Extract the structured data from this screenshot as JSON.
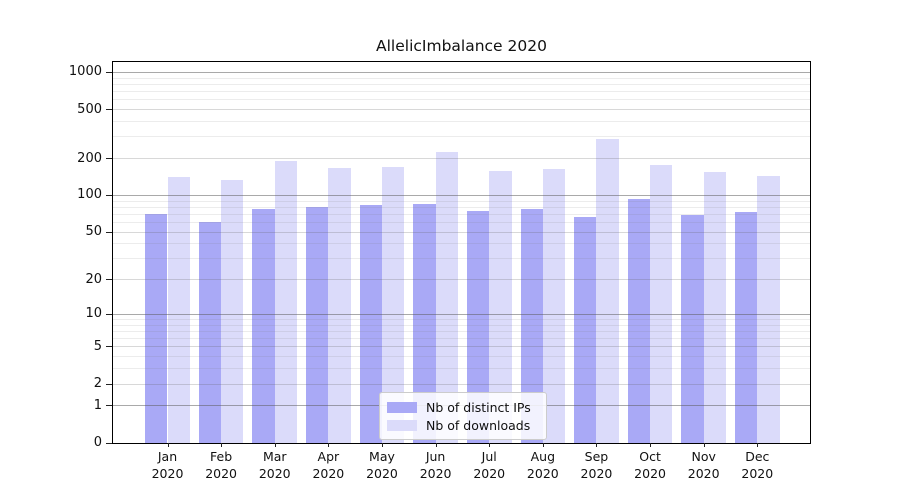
{
  "chart_data": {
    "type": "bar",
    "title": "AllelicImbalance 2020",
    "year_label": "2020",
    "categories": [
      "Jan",
      "Feb",
      "Mar",
      "Apr",
      "May",
      "Jun",
      "Jul",
      "Aug",
      "Sep",
      "Oct",
      "Nov",
      "Dec"
    ],
    "series": [
      {
        "name": "Nb of distinct IPs",
        "color": "#a9a9f6",
        "values": [
          70,
          61,
          78,
          80,
          83,
          85,
          75,
          78,
          67,
          93,
          69,
          73
        ]
      },
      {
        "name": "Nb of downloads",
        "color": "#dbdbfa",
        "values": [
          142,
          134,
          191,
          167,
          172,
          228,
          157,
          164,
          289,
          178,
          155,
          144
        ]
      }
    ],
    "y_axis": {
      "scale": "log10(1+x)",
      "ticks": [
        0,
        1,
        2,
        5,
        10,
        20,
        50,
        100,
        200,
        500,
        1000
      ],
      "decade_ticks": [
        1,
        10,
        100,
        1000
      ],
      "minor_ticks": [
        3,
        4,
        6,
        7,
        8,
        9,
        30,
        40,
        60,
        70,
        80,
        90,
        300,
        400,
        600,
        700,
        800,
        900
      ],
      "max": 1215
    },
    "legend": {
      "position": "lower center"
    },
    "grid": true
  }
}
